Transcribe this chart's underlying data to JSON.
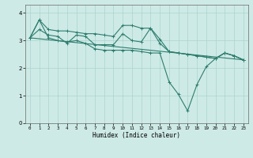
{
  "xlabel": "Humidex (Indice chaleur)",
  "ylabel": "",
  "bg_color": "#ceeae6",
  "grid_color": "#aad4ce",
  "line_color": "#2d7d6e",
  "xlim": [
    -0.5,
    23.5
  ],
  "ylim": [
    0,
    4.3
  ],
  "yticks": [
    0,
    1,
    2,
    3,
    4
  ],
  "xticks": [
    0,
    1,
    2,
    3,
    4,
    5,
    6,
    7,
    8,
    9,
    10,
    11,
    12,
    13,
    14,
    15,
    16,
    17,
    18,
    19,
    20,
    21,
    22,
    23
  ],
  "series1_x": [
    0,
    1,
    2,
    3,
    4,
    5,
    6,
    7,
    8,
    9,
    10,
    11,
    12,
    13,
    14,
    15,
    16,
    17,
    18,
    19,
    20,
    21,
    22,
    23
  ],
  "series1_y": [
    3.1,
    3.75,
    3.4,
    3.35,
    3.35,
    3.3,
    3.25,
    3.25,
    3.2,
    3.15,
    3.55,
    3.55,
    3.45,
    3.45,
    3.05,
    2.6,
    2.55,
    2.5,
    2.45,
    2.4,
    2.35,
    2.55,
    2.45,
    2.3
  ],
  "series2_x": [
    0,
    1,
    2,
    3,
    4,
    5,
    6,
    7,
    8,
    9,
    10,
    11,
    12,
    13,
    14,
    15,
    16,
    17,
    18,
    19,
    20,
    21,
    22,
    23
  ],
  "series2_y": [
    3.1,
    3.4,
    3.2,
    3.15,
    2.9,
    3.2,
    3.15,
    2.85,
    2.85,
    2.85,
    3.25,
    3.0,
    2.95,
    3.45,
    2.9,
    2.6,
    2.55,
    2.5,
    2.45,
    2.4,
    2.35,
    2.55,
    2.45,
    2.3
  ],
  "series3_x": [
    0,
    1,
    2,
    3,
    4,
    5,
    6,
    7,
    8,
    9,
    10,
    11,
    12,
    13,
    14,
    15,
    16,
    17,
    18,
    19,
    20,
    21,
    22,
    23
  ],
  "series3_y": [
    3.1,
    3.75,
    3.1,
    3.0,
    2.95,
    3.0,
    2.9,
    2.7,
    2.65,
    2.65,
    2.65,
    2.65,
    2.6,
    2.55,
    2.55,
    1.5,
    1.05,
    0.45,
    1.4,
    2.05,
    2.35,
    2.55,
    2.45,
    2.3
  ],
  "series4_x": [
    0,
    23
  ],
  "series4_y": [
    3.1,
    2.3
  ]
}
